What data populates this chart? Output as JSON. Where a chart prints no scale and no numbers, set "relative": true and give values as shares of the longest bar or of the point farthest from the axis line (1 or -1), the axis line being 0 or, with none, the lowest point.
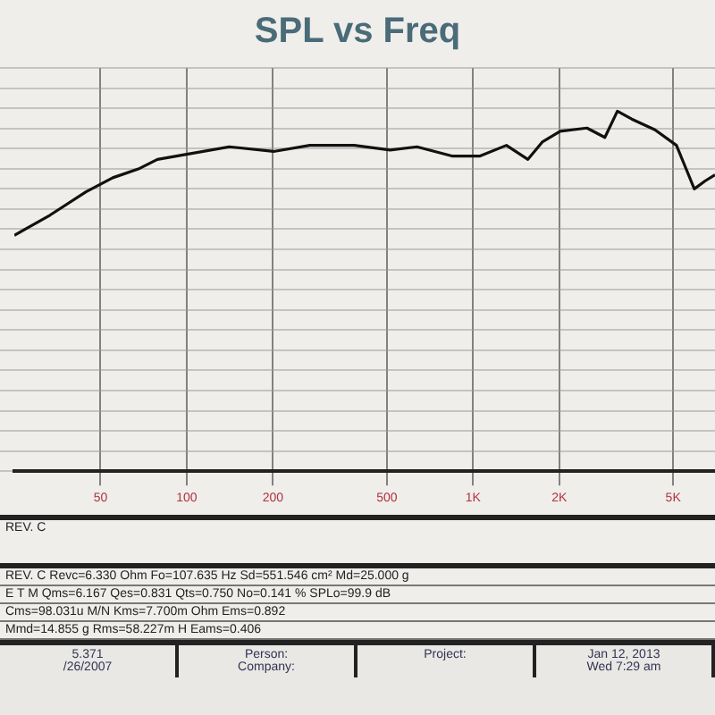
{
  "chart_data": {
    "type": "line",
    "title": "SPL vs Freq",
    "relative": true,
    "log": "x",
    "grid": true,
    "legend": false,
    "marker": "none",
    "line_style": "solid",
    "xlim": [
      25,
      7000
    ],
    "xticks": [
      50,
      100,
      200,
      500,
      {
        "value": 1000,
        "label": "1K"
      },
      {
        "value": 2000,
        "label": "2K"
      },
      {
        "value": 5000,
        "label": "5K"
      }
    ],
    "x": [
      25,
      33.3,
      44.5,
      55.2,
      68.5,
      79,
      98,
      141,
      201,
      269,
      385,
      514,
      637,
      849,
      1054,
      1308,
      1555,
      1745,
      2015,
      2500,
      2887,
      3193,
      3583,
      4320,
      5134,
      5927,
      6462,
      7000
    ],
    "series": [
      {
        "color": "#111111",
        "values": [
          0.655,
          0.711,
          0.776,
          0.815,
          0.841,
          0.866,
          0.879,
          0.901,
          0.888,
          0.905,
          0.905,
          0.892,
          0.901,
          0.875,
          0.875,
          0.905,
          0.866,
          0.914,
          0.944,
          0.953,
          0.927,
          1,
          0.978,
          0.948,
          0.905,
          0.784,
          0.806,
          0.823
        ]
      }
    ],
    "annotations": [
      "REV. C",
      "REV. C  Revc=6.330 Ohm  Fo=107.635 Hz  Sd=551.546 cm² Md=25.000 g",
      "E T M  Qms=6.167  Qes=0.831  Qts=0.750  No=0.141 %  SPLo=99.9 dB",
      "Cms=98.031u M/N  Kms=7.700m Ohm  Ems=0.892",
      "Mmd=14.855 g  Rms=58.227m H  Eams=0.406",
      "5.371",
      "/26/2007",
      "Person:",
      "Company:",
      "Project:",
      "Jan 12, 2013",
      "Wed  7:29 am"
    ]
  }
}
